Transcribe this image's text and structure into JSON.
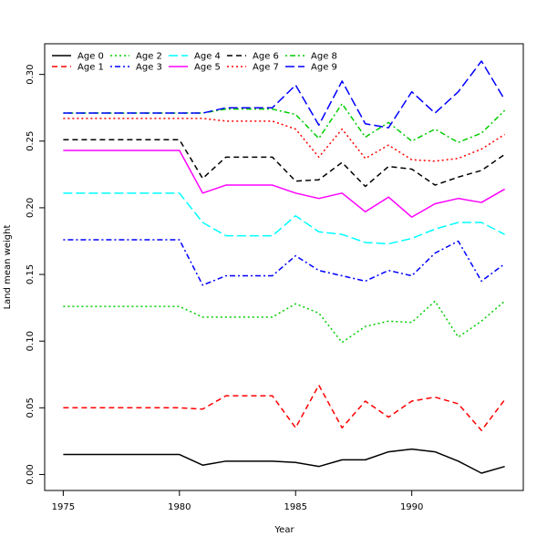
{
  "chart_data": {
    "type": "line",
    "title": "",
    "xlabel": "Year",
    "ylabel": "Land mean weight",
    "xlim": [
      1974.2,
      1994.8
    ],
    "ylim": [
      -0.012,
      0.323
    ],
    "xticks": [
      1975,
      1980,
      1985,
      1990
    ],
    "yticks": [
      0.0,
      0.05,
      0.1,
      0.15,
      0.2,
      0.25,
      0.3
    ],
    "ytick_labels": [
      "0.00",
      "0.05",
      "0.10",
      "0.15",
      "0.20",
      "0.25",
      "0.30"
    ],
    "grid": false,
    "legend_position": "top-left",
    "x": [
      1975,
      1976,
      1977,
      1978,
      1979,
      1980,
      1981,
      1982,
      1983,
      1984,
      1985,
      1986,
      1987,
      1988,
      1989,
      1990,
      1991,
      1992,
      1993,
      1994
    ],
    "series": [
      {
        "name": "Age 0",
        "color": "#000000",
        "dash": "solid",
        "values": [
          0.015,
          0.015,
          0.015,
          0.015,
          0.015,
          0.015,
          0.007,
          0.01,
          0.01,
          0.01,
          0.009,
          0.006,
          0.011,
          0.011,
          0.017,
          0.019,
          0.017,
          0.01,
          0.001,
          0.006
        ]
      },
      {
        "name": "Age 1",
        "color": "#ff0000",
        "dash": "dashed",
        "values": [
          0.05,
          0.05,
          0.05,
          0.05,
          0.05,
          0.05,
          0.049,
          0.059,
          0.059,
          0.059,
          0.035,
          0.067,
          0.035,
          0.055,
          0.043,
          0.055,
          0.058,
          0.053,
          0.033,
          0.056
        ]
      },
      {
        "name": "Age 2",
        "color": "#00cd00",
        "dash": "dotted",
        "values": [
          0.126,
          0.126,
          0.126,
          0.126,
          0.126,
          0.126,
          0.118,
          0.118,
          0.118,
          0.118,
          0.128,
          0.121,
          0.099,
          0.111,
          0.115,
          0.114,
          0.13,
          0.103,
          0.115,
          0.13
        ]
      },
      {
        "name": "Age 3",
        "color": "#0000ff",
        "dash": "dotdash",
        "values": [
          0.176,
          0.176,
          0.176,
          0.176,
          0.176,
          0.176,
          0.142,
          0.149,
          0.149,
          0.149,
          0.164,
          0.153,
          0.149,
          0.145,
          0.153,
          0.149,
          0.166,
          0.175,
          0.145,
          0.158
        ]
      },
      {
        "name": "Age 4",
        "color": "#00ffff",
        "dash": "longdash",
        "values": [
          0.211,
          0.211,
          0.211,
          0.211,
          0.211,
          0.211,
          0.189,
          0.179,
          0.179,
          0.179,
          0.194,
          0.182,
          0.18,
          0.174,
          0.173,
          0.177,
          0.184,
          0.189,
          0.189,
          0.18
        ]
      },
      {
        "name": "Age 5",
        "color": "#ff00ff",
        "dash": "solid",
        "values": [
          0.243,
          0.243,
          0.243,
          0.243,
          0.243,
          0.243,
          0.211,
          0.217,
          0.217,
          0.217,
          0.211,
          0.207,
          0.211,
          0.197,
          0.208,
          0.193,
          0.203,
          0.207,
          0.204,
          0.214
        ]
      },
      {
        "name": "Age 6",
        "color": "#000000",
        "dash": "dashed",
        "values": [
          0.251,
          0.251,
          0.251,
          0.251,
          0.251,
          0.251,
          0.222,
          0.238,
          0.238,
          0.238,
          0.22,
          0.221,
          0.234,
          0.216,
          0.231,
          0.229,
          0.217,
          0.223,
          0.228,
          0.24
        ]
      },
      {
        "name": "Age 7",
        "color": "#ff0000",
        "dash": "dotted",
        "values": [
          0.267,
          0.267,
          0.267,
          0.267,
          0.267,
          0.267,
          0.267,
          0.265,
          0.265,
          0.265,
          0.259,
          0.238,
          0.259,
          0.237,
          0.247,
          0.236,
          0.235,
          0.237,
          0.244,
          0.255
        ]
      },
      {
        "name": "Age 8",
        "color": "#00cd00",
        "dash": "dotdash",
        "values": [
          0.271,
          0.271,
          0.271,
          0.271,
          0.271,
          0.271,
          0.271,
          0.274,
          0.274,
          0.274,
          0.27,
          0.252,
          0.278,
          0.253,
          0.264,
          0.25,
          0.259,
          0.249,
          0.256,
          0.273
        ]
      },
      {
        "name": "Age 9",
        "color": "#0000ff",
        "dash": "longdash",
        "values": [
          0.271,
          0.271,
          0.271,
          0.271,
          0.271,
          0.271,
          0.271,
          0.275,
          0.275,
          0.275,
          0.292,
          0.262,
          0.295,
          0.263,
          0.26,
          0.287,
          0.271,
          0.287,
          0.31,
          0.281
        ]
      }
    ]
  }
}
